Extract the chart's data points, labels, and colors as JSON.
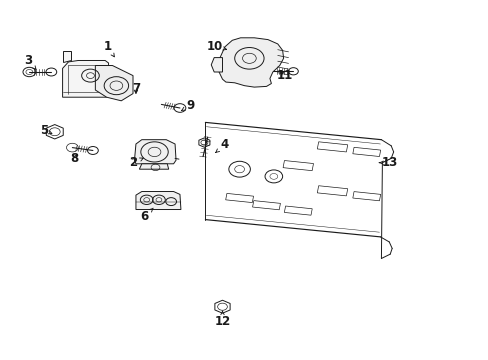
{
  "background_color": "#ffffff",
  "line_color": "#1a1a1a",
  "font_size": 8.5,
  "fig_width": 4.89,
  "fig_height": 3.6,
  "dpi": 100,
  "label_positions": {
    "1": [
      0.22,
      0.87,
      0.235,
      0.84
    ],
    "2": [
      0.272,
      0.548,
      0.3,
      0.565
    ],
    "3": [
      0.058,
      0.832,
      0.075,
      0.805
    ],
    "4": [
      0.46,
      0.598,
      0.44,
      0.575
    ],
    "5": [
      0.09,
      0.638,
      0.108,
      0.628
    ],
    "6": [
      0.295,
      0.398,
      0.318,
      0.428
    ],
    "7": [
      0.278,
      0.755,
      0.278,
      0.73
    ],
    "8": [
      0.152,
      0.56,
      0.162,
      0.578
    ],
    "9": [
      0.39,
      0.708,
      0.37,
      0.692
    ],
    "10": [
      0.44,
      0.872,
      0.465,
      0.862
    ],
    "11": [
      0.582,
      0.79,
      0.568,
      0.808
    ],
    "12": [
      0.455,
      0.108,
      0.455,
      0.138
    ],
    "13": [
      0.798,
      0.548,
      0.775,
      0.548
    ]
  }
}
